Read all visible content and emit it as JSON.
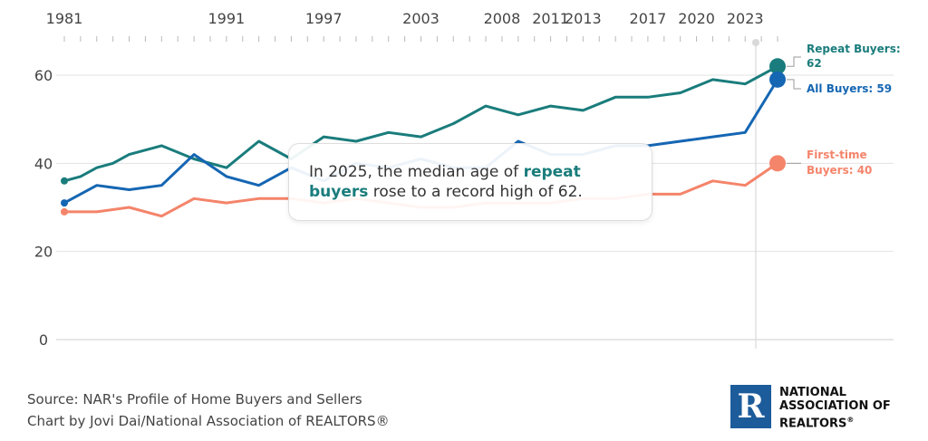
{
  "chart_data": {
    "type": "line",
    "x": [
      1981,
      1983,
      1985,
      1987,
      1989,
      1991,
      1993,
      1995,
      1997,
      1999,
      2001,
      2003,
      2005,
      2007,
      2009,
      2011,
      2013,
      2015,
      2017,
      2019,
      2021,
      2023,
      2025
    ],
    "x_tick_labels": [
      "1981",
      "1991",
      "1997",
      "2003",
      "2008",
      "2011",
      "2013",
      "2017",
      "2020",
      "2023"
    ],
    "series": [
      {
        "name": "Repeat Buyers",
        "color": "#1a7c7c",
        "x": [
          1981,
          1982,
          1983,
          1984,
          1985,
          1987,
          1989,
          1991,
          1993,
          1995,
          1997,
          1999,
          2001,
          2003,
          2005,
          2007,
          2009,
          2011,
          2013,
          2015,
          2017,
          2019,
          2021,
          2023,
          2025
        ],
        "values": [
          36,
          37,
          39,
          40,
          42,
          44,
          41,
          39,
          45,
          41,
          46,
          45,
          47,
          46,
          49,
          53,
          51,
          53,
          52,
          55,
          55,
          56,
          59,
          58,
          62
        ],
        "end_label": "Repeat Buyers: 62"
      },
      {
        "name": "All Buyers",
        "color": "#1566b3",
        "x": [
          1981,
          1983,
          1985,
          1987,
          1989,
          1991,
          1993,
          1995,
          1997,
          1999,
          2001,
          2003,
          2005,
          2007,
          2009,
          2011,
          2013,
          2015,
          2017,
          2019,
          2021,
          2023,
          2025
        ],
        "values": [
          31,
          35,
          34,
          35,
          42,
          37,
          35,
          39,
          36,
          40,
          39,
          41,
          39,
          39,
          45,
          42,
          42,
          44,
          44,
          45,
          46,
          47,
          59
        ],
        "end_label": "All Buyers: 59"
      },
      {
        "name": "First-time Buyers",
        "color": "#f4846a",
        "x": [
          1981,
          1983,
          1985,
          1987,
          1989,
          1991,
          1993,
          1995,
          1997,
          1999,
          2001,
          2003,
          2005,
          2007,
          2009,
          2011,
          2013,
          2015,
          2017,
          2019,
          2021,
          2023,
          2025
        ],
        "values": [
          29,
          29,
          30,
          28,
          32,
          31,
          32,
          32,
          31,
          32,
          31,
          30,
          30,
          31,
          31,
          31,
          32,
          32,
          33,
          33,
          36,
          35,
          40
        ],
        "end_label_line1": "First-time",
        "end_label_line2": "Buyers: 40"
      }
    ],
    "y_ticks": [
      0,
      20,
      40,
      60
    ],
    "ylim": [
      0,
      64
    ],
    "grid": true,
    "annotation": {
      "part1": "In 2025, the median age of ",
      "highlight": "repeat buyers",
      "part2": " rose to a record high of 62."
    }
  },
  "footer": {
    "source": "Source: NAR's Profile of Home Buyers and Sellers",
    "credit": "Chart by Jovi Dai/National Association of REALTORS®"
  },
  "logo": {
    "mark": "R",
    "line1": "NATIONAL",
    "line2": "ASSOCIATION OF",
    "line3": "REALTORS",
    "registered": "®"
  }
}
